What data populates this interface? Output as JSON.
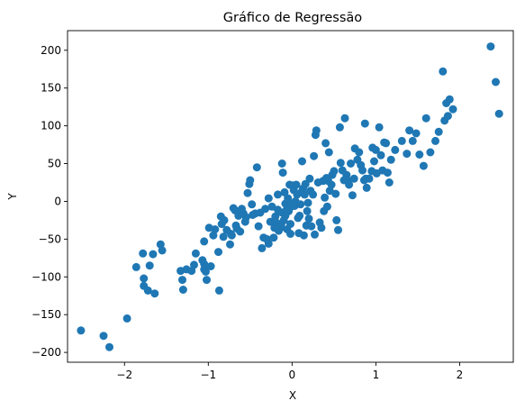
{
  "chart_data": {
    "type": "scatter",
    "title": "Gráfico de Regressão",
    "xlabel": "X",
    "ylabel": "Y",
    "xlim": [
      -2.68,
      2.64
    ],
    "ylim": [
      -213,
      226
    ],
    "x_ticks": [
      -2,
      -1,
      0,
      1,
      2
    ],
    "x_tick_labels": [
      "−2",
      "−1",
      "0",
      "1",
      "2"
    ],
    "y_ticks": [
      -200,
      -150,
      -100,
      -50,
      0,
      50,
      100,
      150,
      200
    ],
    "y_tick_labels": [
      "−200",
      "−150",
      "−100",
      "−50",
      "0",
      "50",
      "100",
      "150",
      "200"
    ],
    "grid": false,
    "color": "#1f77b4",
    "series": [
      {
        "points": [
          [
            -2.52,
            -171
          ],
          [
            -2.25,
            -178
          ],
          [
            -2.18,
            -193
          ],
          [
            -1.97,
            -155
          ],
          [
            -1.86,
            -87
          ],
          [
            -1.78,
            -69
          ],
          [
            -1.77,
            -102
          ],
          [
            -1.77,
            -112
          ],
          [
            -1.72,
            -118
          ],
          [
            -1.7,
            -85
          ],
          [
            -1.66,
            -70
          ],
          [
            -1.64,
            -122
          ],
          [
            -1.57,
            -57
          ],
          [
            -1.55,
            -65
          ],
          [
            -1.33,
            -92
          ],
          [
            -1.31,
            -104
          ],
          [
            -1.3,
            -117
          ],
          [
            -1.26,
            -90
          ],
          [
            -1.2,
            -92
          ],
          [
            -1.17,
            -84
          ],
          [
            -1.15,
            -69
          ],
          [
            -1.07,
            -78
          ],
          [
            -1.05,
            -83
          ],
          [
            -1.05,
            -90
          ],
          [
            -1.03,
            -93
          ],
          [
            -1.02,
            -104
          ],
          [
            -1.05,
            -53
          ],
          [
            -0.99,
            -35
          ],
          [
            -0.97,
            -86
          ],
          [
            -0.94,
            -45
          ],
          [
            -0.92,
            -37
          ],
          [
            -0.87,
            -118
          ],
          [
            -0.88,
            -67
          ],
          [
            -0.85,
            -20
          ],
          [
            -0.84,
            -30
          ],
          [
            -0.82,
            -47
          ],
          [
            -0.81,
            -25
          ],
          [
            -0.78,
            -38
          ],
          [
            -0.74,
            -57
          ],
          [
            -0.73,
            -43
          ],
          [
            -0.72,
            -45
          ],
          [
            -0.7,
            -9
          ],
          [
            -0.68,
            -12
          ],
          [
            -0.67,
            -32
          ],
          [
            -0.66,
            -36
          ],
          [
            -0.64,
            -19
          ],
          [
            -0.62,
            -40
          ],
          [
            -0.6,
            -10
          ],
          [
            -0.58,
            -16
          ],
          [
            -0.56,
            -27
          ],
          [
            -0.55,
            -21
          ],
          [
            -0.53,
            11
          ],
          [
            -0.51,
            23
          ],
          [
            -0.5,
            28
          ],
          [
            -0.48,
            -4
          ],
          [
            -0.47,
            -18
          ],
          [
            -0.44,
            -16
          ],
          [
            -0.42,
            45
          ],
          [
            -0.4,
            -33
          ],
          [
            -0.38,
            -15
          ],
          [
            -0.36,
            -62
          ],
          [
            -0.34,
            -48
          ],
          [
            -0.32,
            -10
          ],
          [
            -0.3,
            -50
          ],
          [
            -0.28,
            4
          ],
          [
            -0.28,
            -56
          ],
          [
            -0.26,
            -27
          ],
          [
            -0.24,
            -7
          ],
          [
            -0.22,
            -48
          ],
          [
            -0.21,
            -35
          ],
          [
            -0.2,
            -20
          ],
          [
            -0.19,
            -28
          ],
          [
            -0.17,
            9
          ],
          [
            -0.17,
            -11
          ],
          [
            -0.16,
            -39
          ],
          [
            -0.14,
            -35
          ],
          [
            -0.13,
            -30
          ],
          [
            -0.12,
            -15
          ],
          [
            -0.12,
            50
          ],
          [
            -0.11,
            38
          ],
          [
            -0.1,
            -25
          ],
          [
            -0.09,
            12
          ],
          [
            -0.08,
            -3
          ],
          [
            -0.08,
            -19
          ],
          [
            -0.07,
            -12
          ],
          [
            -0.06,
            -37
          ],
          [
            -0.05,
            4
          ],
          [
            -0.04,
            -13
          ],
          [
            -0.03,
            22
          ],
          [
            -0.02,
            -30
          ],
          [
            -0.02,
            -43
          ],
          [
            -0.01,
            -7
          ],
          [
            0.0,
            -3
          ],
          [
            0.01,
            21
          ],
          [
            0.02,
            15
          ],
          [
            0.03,
            -6
          ],
          [
            0.04,
            0
          ],
          [
            0.05,
            22
          ],
          [
            0.06,
            9
          ],
          [
            0.07,
            -22
          ],
          [
            0.08,
            -42
          ],
          [
            0.09,
            -19
          ],
          [
            0.1,
            -4
          ],
          [
            0.11,
            12
          ],
          [
            0.12,
            53
          ],
          [
            0.13,
            17
          ],
          [
            0.14,
            -45
          ],
          [
            0.15,
            9
          ],
          [
            0.16,
            23
          ],
          [
            0.17,
            -32
          ],
          [
            0.18,
            -13
          ],
          [
            0.19,
            -2
          ],
          [
            0.2,
            -23
          ],
          [
            0.21,
            30
          ],
          [
            0.22,
            14
          ],
          [
            0.23,
            -33
          ],
          [
            0.25,
            9
          ],
          [
            0.26,
            60
          ],
          [
            0.27,
            -44
          ],
          [
            0.28,
            88
          ],
          [
            0.29,
            94
          ],
          [
            0.31,
            25
          ],
          [
            0.33,
            -28
          ],
          [
            0.35,
            -35
          ],
          [
            0.37,
            27
          ],
          [
            0.38,
            -13
          ],
          [
            0.39,
            5
          ],
          [
            0.4,
            77
          ],
          [
            0.41,
            31
          ],
          [
            0.42,
            -7
          ],
          [
            0.43,
            27
          ],
          [
            0.44,
            65
          ],
          [
            0.45,
            14
          ],
          [
            0.47,
            22
          ],
          [
            0.48,
            35
          ],
          [
            0.5,
            40
          ],
          [
            0.52,
            10
          ],
          [
            0.53,
            -25
          ],
          [
            0.55,
            -38
          ],
          [
            0.57,
            98
          ],
          [
            0.58,
            51
          ],
          [
            0.6,
            41
          ],
          [
            0.62,
            28
          ],
          [
            0.63,
            110
          ],
          [
            0.65,
            35
          ],
          [
            0.66,
            28
          ],
          [
            0.68,
            22
          ],
          [
            0.7,
            50
          ],
          [
            0.72,
            8
          ],
          [
            0.74,
            30
          ],
          [
            0.75,
            70
          ],
          [
            0.78,
            55
          ],
          [
            0.8,
            65
          ],
          [
            0.82,
            48
          ],
          [
            0.84,
            41
          ],
          [
            0.86,
            28
          ],
          [
            0.87,
            103
          ],
          [
            0.88,
            30
          ],
          [
            0.89,
            18
          ],
          [
            0.92,
            30
          ],
          [
            0.95,
            40
          ],
          [
            0.96,
            71
          ],
          [
            0.98,
            53
          ],
          [
            1.0,
            68
          ],
          [
            1.01,
            37
          ],
          [
            1.04,
            98
          ],
          [
            1.06,
            61
          ],
          [
            1.08,
            41
          ],
          [
            1.1,
            78
          ],
          [
            1.12,
            77
          ],
          [
            1.14,
            38
          ],
          [
            1.16,
            25
          ],
          [
            1.18,
            55
          ],
          [
            1.23,
            68
          ],
          [
            1.31,
            80
          ],
          [
            1.37,
            63
          ],
          [
            1.4,
            94
          ],
          [
            1.44,
            80
          ],
          [
            1.48,
            90
          ],
          [
            1.52,
            62
          ],
          [
            1.57,
            47
          ],
          [
            1.6,
            110
          ],
          [
            1.65,
            65
          ],
          [
            1.71,
            80
          ],
          [
            1.75,
            92
          ],
          [
            1.8,
            172
          ],
          [
            1.82,
            107
          ],
          [
            1.84,
            130
          ],
          [
            1.86,
            113
          ],
          [
            1.88,
            135
          ],
          [
            1.92,
            122
          ],
          [
            2.37,
            205
          ],
          [
            2.43,
            158
          ],
          [
            2.47,
            116
          ]
        ]
      }
    ]
  }
}
